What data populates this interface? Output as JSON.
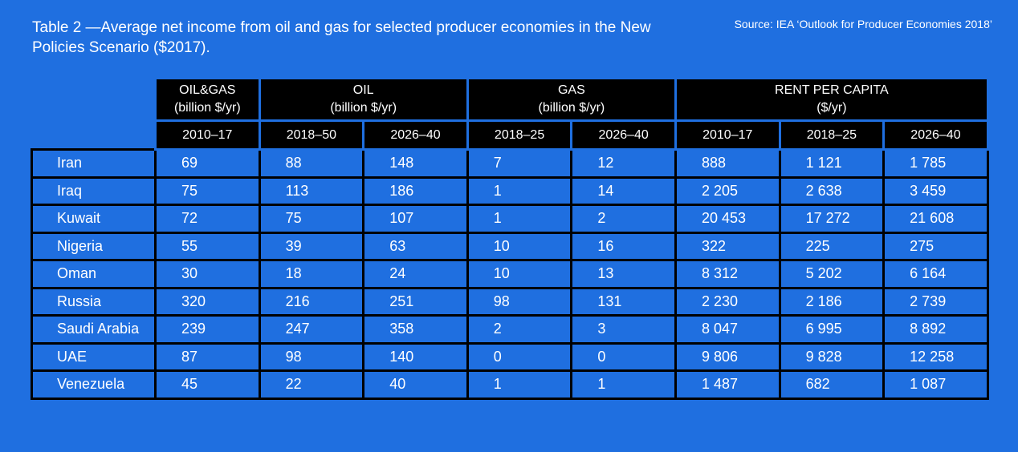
{
  "title": "Table 2 —Average net income from oil and gas for selected producer economies in the New Policies Scenario ($2017).",
  "source": "Source: IEA ‘Outlook for Producer Economies 2018’",
  "groups": [
    {
      "name": "OIL&GAS",
      "unit": "(billion $/yr)"
    },
    {
      "name": "OIL",
      "unit": "(billion $/yr)"
    },
    {
      "name": "GAS",
      "unit": "(billion $/yr)"
    },
    {
      "name": "RENT PER CAPITA",
      "unit": "($/yr)"
    }
  ],
  "periods": [
    "2010–17",
    "2018–50",
    "2026–40",
    "2018–25",
    "2026–40",
    "2010–17",
    "2018–25",
    "2026–40"
  ],
  "rows": [
    [
      "Iran",
      "69",
      "88",
      "148",
      "7",
      "12",
      "888",
      "1 121",
      "1 785"
    ],
    [
      "Iraq",
      "75",
      "113",
      "186",
      "1",
      "14",
      "2 205",
      "2 638",
      "3 459"
    ],
    [
      "Kuwait",
      "72",
      "75",
      "107",
      "1",
      "2",
      "20 453",
      "17 272",
      "21 608"
    ],
    [
      "Nigeria",
      "55",
      "39",
      "63",
      "10",
      "16",
      "322",
      "225",
      "275"
    ],
    [
      "Oman",
      "30",
      "18",
      "24",
      "10",
      "13",
      "8 312",
      "5 202",
      "6 164"
    ],
    [
      "Russia",
      "320",
      "216",
      "251",
      "98",
      "131",
      "2 230",
      "2 186",
      "2 739"
    ],
    [
      "Saudi Arabia",
      "239",
      "247",
      "358",
      "2",
      "3",
      "8 047",
      "6 995",
      "8 892"
    ],
    [
      "UAE",
      "87",
      "98",
      "140",
      "0",
      "0",
      "9 806",
      "9 828",
      "12 258"
    ],
    [
      "Venezuela",
      "45",
      "22",
      "40",
      "1",
      "1",
      "1 487",
      "682",
      "1 087"
    ]
  ]
}
